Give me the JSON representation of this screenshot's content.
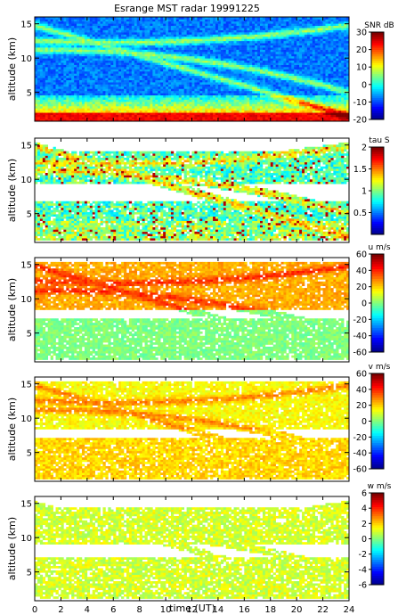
{
  "chart_data": [
    {
      "type": "heatmap",
      "title": "Esrange MST radar 19991225",
      "ylabel": "altitude (km)",
      "colorbar_label": "SNR dB",
      "yticks": [
        5,
        10,
        15
      ],
      "ylim": [
        0.8,
        16
      ],
      "xlim": [
        0,
        24
      ],
      "clim": [
        -20,
        30
      ],
      "cticks": [
        -20,
        -10,
        0,
        10,
        20,
        30
      ],
      "field": "snr"
    },
    {
      "type": "heatmap",
      "ylabel": "altitude (km)",
      "colorbar_label": "tau S",
      "yticks": [
        5,
        10,
        15
      ],
      "ylim": [
        0.8,
        16
      ],
      "xlim": [
        0,
        24
      ],
      "clim": [
        0,
        2
      ],
      "cticks": [
        0.5,
        1,
        1.5,
        2
      ],
      "field": "tau"
    },
    {
      "type": "heatmap",
      "ylabel": "altitude (km)",
      "colorbar_label": "u m/s",
      "yticks": [
        5,
        10,
        15
      ],
      "ylim": [
        0.8,
        16
      ],
      "xlim": [
        0,
        24
      ],
      "clim": [
        -60,
        60
      ],
      "cticks": [
        -60,
        -40,
        -20,
        0,
        20,
        40,
        60
      ],
      "field": "u"
    },
    {
      "type": "heatmap",
      "ylabel": "altitude (km)",
      "colorbar_label": "v m/s",
      "yticks": [
        5,
        10,
        15
      ],
      "ylim": [
        0.8,
        16
      ],
      "xlim": [
        0,
        24
      ],
      "clim": [
        -60,
        60
      ],
      "cticks": [
        -60,
        -40,
        -20,
        0,
        20,
        40,
        60
      ],
      "field": "v"
    },
    {
      "type": "heatmap",
      "ylabel": "altitude (km)",
      "xlabel": "time (UT)",
      "colorbar_label": "w m/s",
      "yticks": [
        5,
        10,
        15
      ],
      "xticks": [
        0,
        2,
        4,
        6,
        8,
        10,
        12,
        14,
        16,
        18,
        20,
        22,
        24
      ],
      "ylim": [
        0.8,
        16
      ],
      "xlim": [
        0,
        24
      ],
      "clim": [
        -6,
        6
      ],
      "cticks": [
        -6,
        -4,
        -2,
        0,
        2,
        4,
        6
      ],
      "field": "w"
    }
  ],
  "colormap": [
    "#00008f",
    "#0000ff",
    "#0080ff",
    "#00ffff",
    "#80ff80",
    "#ffff00",
    "#ff8000",
    "#ff0000",
    "#800000"
  ]
}
